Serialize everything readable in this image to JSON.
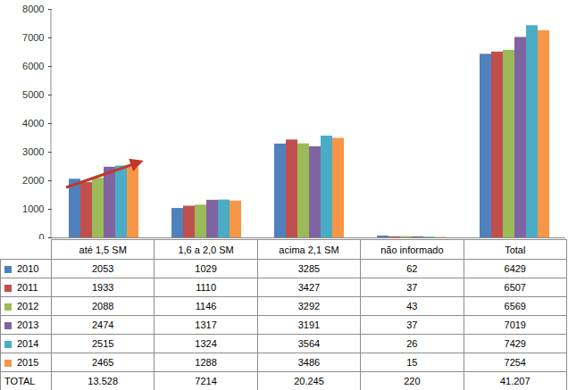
{
  "chart_data": {
    "type": "bar",
    "categories": [
      "até 1,5 SM",
      "1,6 a 2,0 SM",
      "acima 2,1 SM",
      "não informado",
      "Total"
    ],
    "series": [
      {
        "name": "2010",
        "color": "#4f81bd",
        "values": [
          2053,
          1029,
          3285,
          62,
          6429
        ]
      },
      {
        "name": "2011",
        "color": "#c0504d",
        "values": [
          1933,
          1110,
          3427,
          37,
          6507
        ]
      },
      {
        "name": "2012",
        "color": "#9bbb59",
        "values": [
          2088,
          1146,
          3292,
          43,
          6569
        ]
      },
      {
        "name": "2013",
        "color": "#8064a2",
        "values": [
          2474,
          1317,
          3191,
          37,
          7019
        ]
      },
      {
        "name": "2014",
        "color": "#4bacc6",
        "values": [
          2515,
          1324,
          3564,
          26,
          7429
        ]
      },
      {
        "name": "2015",
        "color": "#f79646",
        "values": [
          2465,
          1288,
          3486,
          15,
          7254
        ]
      }
    ],
    "totals": {
      "name": "TOTAL",
      "values": [
        13528,
        7214,
        20245,
        220,
        41207
      ],
      "value_labels": [
        "13.528",
        "7214",
        "20.245",
        "220",
        "41.207"
      ]
    },
    "ylim": [
      0,
      8000
    ],
    "yticks": [
      0,
      1000,
      2000,
      3000,
      4000,
      5000,
      6000,
      7000,
      8000
    ],
    "grid": false,
    "legend": "bottom"
  }
}
